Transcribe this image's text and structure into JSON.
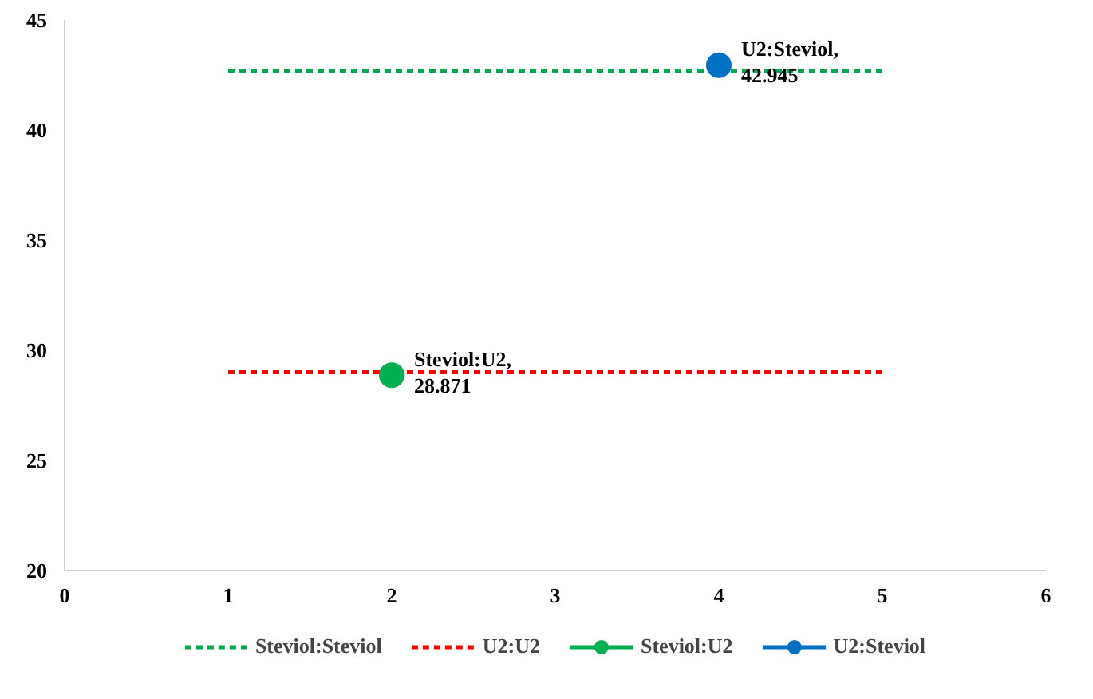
{
  "chart_data": {
    "type": "line",
    "xlim": [
      0,
      6
    ],
    "xticks": [
      0,
      1,
      2,
      3,
      4,
      5,
      6
    ],
    "ylim": [
      20,
      45
    ],
    "yticks": [
      20,
      25,
      30,
      35,
      40,
      45
    ],
    "grid": false,
    "legend": "bottom",
    "series": [
      {
        "name": "Steviol:Steviol",
        "color": "#00a84f",
        "x": [
          1,
          5
        ],
        "values": [
          42.7,
          42.7
        ],
        "line_style": "dashed",
        "marker": "none"
      },
      {
        "name": "U2:U2",
        "color": "#ff0000",
        "x": [
          1,
          5
        ],
        "values": [
          29.0,
          29.0
        ],
        "line_style": "dashed",
        "marker": "none"
      },
      {
        "name": "Steviol:U2",
        "color": "#00b050",
        "x": [
          2
        ],
        "values": [
          28.871
        ],
        "line_style": "solid",
        "marker": "circle",
        "value_labels": [
          "Steviol:U2,\n28.871"
        ]
      },
      {
        "name": "U2:Steviol",
        "color": "#0070c0",
        "x": [
          4
        ],
        "values": [
          42.945
        ],
        "line_style": "solid",
        "marker": "circle",
        "value_labels": [
          "U2:Steviol,\n42.945"
        ]
      }
    ]
  }
}
